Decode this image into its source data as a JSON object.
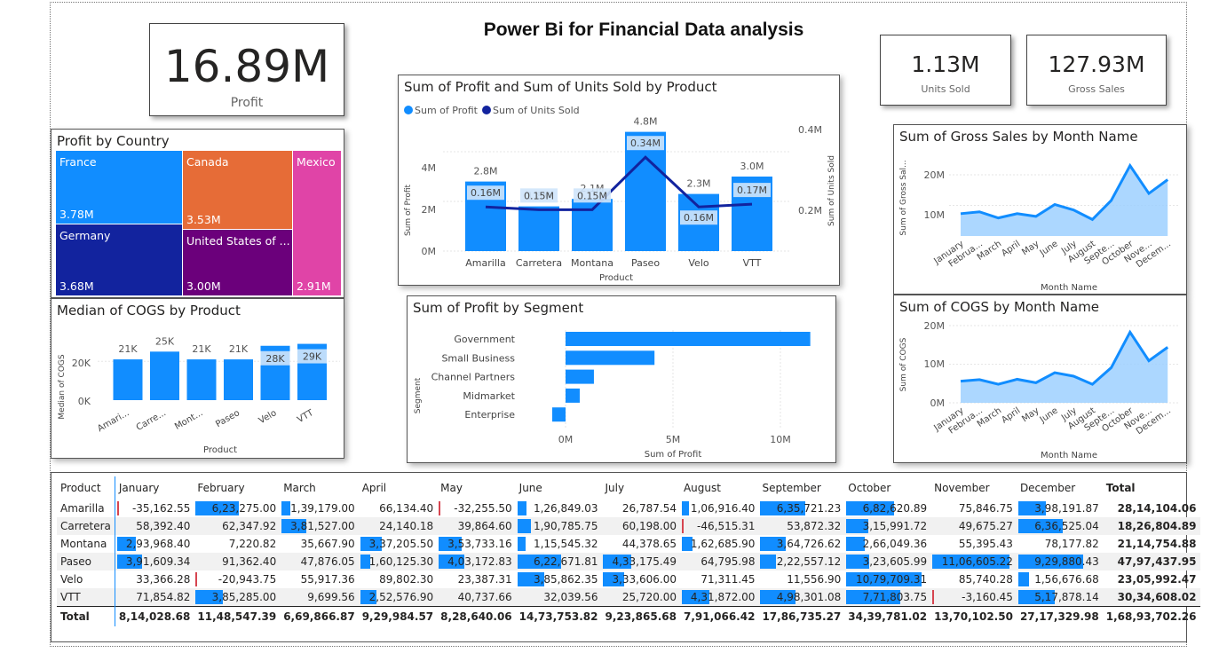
{
  "title": "Power Bi for Financial Data analysis",
  "kpis": {
    "profit": {
      "value": "16.89M",
      "label": "Profit"
    },
    "units": {
      "value": "1.13M",
      "label": "Units Sold"
    },
    "gross": {
      "value": "127.93M",
      "label": "Gross Sales"
    }
  },
  "colors": {
    "accent": "#118dff",
    "dark": "#12239e",
    "area": "#9ed0ff"
  },
  "treemap": {
    "title": "Profit by Country",
    "items": [
      {
        "name": "France",
        "value": "3.78M",
        "color": "#118dff"
      },
      {
        "name": "Canada",
        "value": "3.53M",
        "color": "#e66c37"
      },
      {
        "name": "Mexico",
        "value": "2.91M",
        "color": "#e044a7"
      },
      {
        "name": "Germany",
        "value": "3.68M",
        "color": "#12239e"
      },
      {
        "name": "United States of ...",
        "value": "3.00M",
        "color": "#6b007b"
      }
    ]
  },
  "combo": {
    "title": "Sum of Profit and Sum of Units Sold by Product",
    "legend": [
      "Sum of Profit",
      "Sum of Units Sold"
    ],
    "ylabel": "Sum of Profit",
    "y2label": "Sum of Units Sold",
    "xlabel": "Product",
    "yticks": [
      "0M",
      "2M",
      "4M"
    ],
    "y2ticks": [
      "0.2M",
      "0.4M"
    ]
  },
  "cogs_product": {
    "title": "Median of COGS by Product",
    "ylabel": "Median of COGS",
    "xlabel": "Product",
    "yticks": [
      "0K",
      "20K"
    ]
  },
  "segment": {
    "title": "Sum of Profit by Segment",
    "ylabel": "Segment",
    "xlabel": "Sum of Profit",
    "xticks": [
      "0M",
      "5M",
      "10M"
    ]
  },
  "gross_month": {
    "title": "Sum of Gross Sales by Month Name",
    "ylabel": "Sum of Gross Sal...",
    "xlabel": "Month Name",
    "yticks": [
      "10M",
      "20M"
    ],
    "xticks": [
      "January",
      "Februa...",
      "March",
      "April",
      "May",
      "June",
      "July",
      "August",
      "Septe...",
      "October",
      "Nove...",
      "Decem..."
    ]
  },
  "cogs_month": {
    "title": "Sum of COGS by Month Name",
    "ylabel": "Sum of COGS",
    "xlabel": "Month Name",
    "yticks": [
      "0M",
      "10M",
      "20M"
    ],
    "xticks": [
      "January",
      "Februa...",
      "March",
      "April",
      "May",
      "June",
      "July",
      "August",
      "Septe...",
      "October",
      "Nove...",
      "Decem..."
    ]
  },
  "matrix": {
    "headers": [
      "Product",
      "January",
      "February",
      "March",
      "April",
      "May",
      "June",
      "July",
      "August",
      "September",
      "October",
      "November",
      "December",
      "Total"
    ],
    "rows": [
      {
        "product": "Amarilla",
        "cells": [
          "-35,162.55",
          "6,23,275.00",
          "1,39,179.00",
          "66,134.40",
          "-32,255.50",
          "1,26,849.03",
          "26,787.54",
          "1,06,916.40",
          "6,35,721.23",
          "6,82,620.89",
          "75,846.75",
          "3,98,191.87"
        ],
        "total": "28,14,104.06"
      },
      {
        "product": "Carretera",
        "cells": [
          "58,392.40",
          "62,347.92",
          "3,81,527.00",
          "24,140.18",
          "39,864.60",
          "1,90,785.75",
          "60,198.00",
          "-46,515.31",
          "53,872.32",
          "3,15,991.72",
          "49,675.27",
          "6,36,525.04"
        ],
        "total": "18,26,804.89"
      },
      {
        "product": "Montana",
        "cells": [
          "2,93,968.40",
          "7,220.82",
          "35,667.90",
          "3,37,205.50",
          "3,53,733.16",
          "1,15,545.32",
          "44,378.65",
          "1,62,685.90",
          "3,64,726.62",
          "2,66,049.36",
          "55,395.43",
          "78,177.82"
        ],
        "total": "21,14,754.88"
      },
      {
        "product": "Paseo",
        "cells": [
          "3,91,609.34",
          "91,362.40",
          "47,876.05",
          "1,60,125.30",
          "4,03,172.83",
          "6,22,671.81",
          "4,33,175.49",
          "64,795.98",
          "2,22,557.12",
          "3,23,605.99",
          "11,06,605.22",
          "9,29,880.43"
        ],
        "total": "47,97,437.95"
      },
      {
        "product": "Velo",
        "cells": [
          "33,366.28",
          "-20,943.75",
          "55,917.36",
          "89,802.30",
          "23,387.31",
          "3,85,862.35",
          "3,33,606.00",
          "71,311.45",
          "11,556.90",
          "10,79,709.31",
          "85,740.28",
          "1,56,676.68"
        ],
        "total": "23,05,992.47"
      },
      {
        "product": "VTT",
        "cells": [
          "71,854.82",
          "3,85,285.00",
          "9,699.56",
          "2,52,576.90",
          "40,737.66",
          "32,039.56",
          "25,720.00",
          "4,31,872.00",
          "4,98,301.08",
          "7,71,803.75",
          "-3,160.45",
          "5,17,878.14"
        ],
        "total": "30,34,608.02"
      }
    ],
    "totals": {
      "label": "Total",
      "cells": [
        "8,14,028.68",
        "11,48,547.39",
        "6,69,866.87",
        "9,29,984.57",
        "8,28,640.06",
        "14,73,753.82",
        "9,23,865.68",
        "7,91,066.42",
        "17,86,735.27",
        "34,39,781.02",
        "13,70,102.50",
        "27,17,329.98"
      ],
      "total": "1,68,93,702.26"
    }
  },
  "chart_data": [
    {
      "type": "bar",
      "title": "Sum of Profit and Sum of Units Sold by Product",
      "categories": [
        "Amarilla",
        "Carretera",
        "Montana",
        "Paseo",
        "Velo",
        "VTT"
      ],
      "series": [
        {
          "name": "Sum of Profit",
          "type": "bar",
          "values": [
            2.8,
            1.8,
            2.1,
            4.8,
            2.3,
            3.0
          ],
          "labels": [
            "2.8M",
            "1.8M",
            "2.1M",
            "4.8M",
            "2.3M",
            "3.0M"
          ]
        },
        {
          "name": "Sum of Units Sold",
          "type": "line",
          "values": [
            0.16,
            0.15,
            0.15,
            0.34,
            0.16,
            0.17
          ],
          "labels": [
            "0.16M",
            "0.15M",
            "0.15M",
            "0.34M",
            "0.16M",
            "0.17M"
          ]
        }
      ],
      "ylim": [
        0,
        5
      ],
      "y2lim": [
        0,
        0.45
      ]
    },
    {
      "type": "bar",
      "title": "Median of COGS by Product",
      "categories": [
        "Amari...",
        "Carre...",
        "Mont...",
        "Paseo",
        "Velo",
        "VTT"
      ],
      "values": [
        21,
        25,
        21,
        21,
        28,
        29
      ],
      "labels": [
        "21K",
        "25K",
        "21K",
        "21K",
        "28K",
        "29K"
      ],
      "ylim": [
        0,
        32
      ]
    },
    {
      "type": "bar",
      "orientation": "horizontal",
      "title": "Sum of Profit by Segment",
      "categories": [
        "Government",
        "Small Business",
        "Channel Partners",
        "Midmarket",
        "Enterprise"
      ],
      "values": [
        11.39,
        4.14,
        1.32,
        0.66,
        -0.62
      ],
      "xlim": [
        -0.8,
        12.5
      ]
    },
    {
      "type": "area",
      "title": "Sum of Gross Sales by Month Name",
      "categories": [
        "January",
        "February",
        "March",
        "April",
        "May",
        "June",
        "July",
        "August",
        "September",
        "October",
        "November",
        "December"
      ],
      "values": [
        7.3,
        7.9,
        5.9,
        7.3,
        6.4,
        10.3,
        8.5,
        5.4,
        11.6,
        23.0,
        13.9,
        18.4
      ],
      "ylim": [
        0,
        26
      ]
    },
    {
      "type": "area",
      "title": "Sum of COGS by Month Name",
      "categories": [
        "January",
        "February",
        "March",
        "April",
        "May",
        "June",
        "July",
        "August",
        "September",
        "October",
        "November",
        "December"
      ],
      "values": [
        5.6,
        6.0,
        4.8,
        6.1,
        5.2,
        7.8,
        6.9,
        4.8,
        9.1,
        18.3,
        10.9,
        14.4
      ],
      "ylim": [
        0,
        21
      ]
    }
  ]
}
